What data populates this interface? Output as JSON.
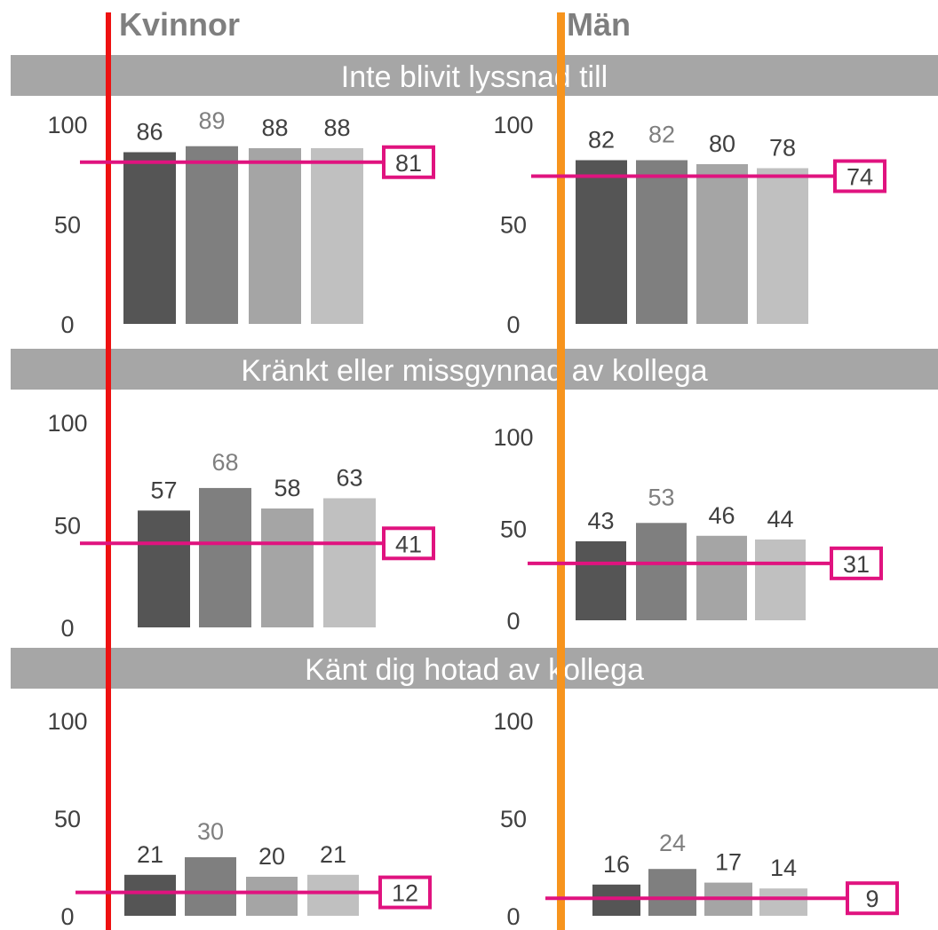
{
  "colors": {
    "kvinnor_line": "#ee1111",
    "man_line": "#f7941d",
    "band": "#a6a6a6",
    "band_text": "#ffffff",
    "ref": "#e0137f",
    "bars": [
      "#555555",
      "#7f7f7f",
      "#a5a5a5",
      "#c0c0c0"
    ]
  },
  "headers": {
    "kvinnor": "Kvinnor",
    "man": "Män"
  },
  "chart_data": [
    {
      "type": "bar",
      "section": "Inte blivit lyssnad till",
      "group": "Kvinnor",
      "values": [
        86,
        89,
        88,
        88
      ],
      "reference": 81,
      "ylim": [
        0,
        100
      ],
      "yticks": [
        0,
        50,
        100
      ]
    },
    {
      "type": "bar",
      "section": "Inte blivit lyssnad till",
      "group": "Män",
      "values": [
        82,
        82,
        80,
        78
      ],
      "reference": 74,
      "ylim": [
        0,
        100
      ],
      "yticks": [
        0,
        50,
        100
      ]
    },
    {
      "type": "bar",
      "section": "Kränkt eller missgynnad av kollega",
      "group": "Kvinnor",
      "values": [
        57,
        68,
        58,
        63
      ],
      "reference": 41,
      "ylim": [
        0,
        100
      ],
      "yticks": [
        0,
        50,
        100
      ]
    },
    {
      "type": "bar",
      "section": "Kränkt eller missgynnad av kollega",
      "group": "Män",
      "values": [
        43,
        53,
        46,
        44
      ],
      "reference": 31,
      "ylim": [
        0,
        100
      ],
      "yticks": [
        0,
        50,
        100
      ]
    },
    {
      "type": "bar",
      "section": "Känt dig hotad av kollega",
      "group": "Kvinnor",
      "values": [
        21,
        30,
        20,
        21
      ],
      "reference": 12,
      "ylim": [
        0,
        100
      ],
      "yticks": [
        0,
        50,
        100
      ]
    },
    {
      "type": "bar",
      "section": "Känt dig hotad av kollega",
      "group": "Män",
      "values": [
        16,
        24,
        17,
        14
      ],
      "reference": 9,
      "ylim": [
        0,
        100
      ],
      "yticks": [
        0,
        50,
        100
      ]
    }
  ],
  "sections": [
    {
      "title": "Inte blivit lyssnad till"
    },
    {
      "title": "Kränkt eller missgynnad av kollega"
    },
    {
      "title": "Känt dig hotad av kollega"
    }
  ]
}
